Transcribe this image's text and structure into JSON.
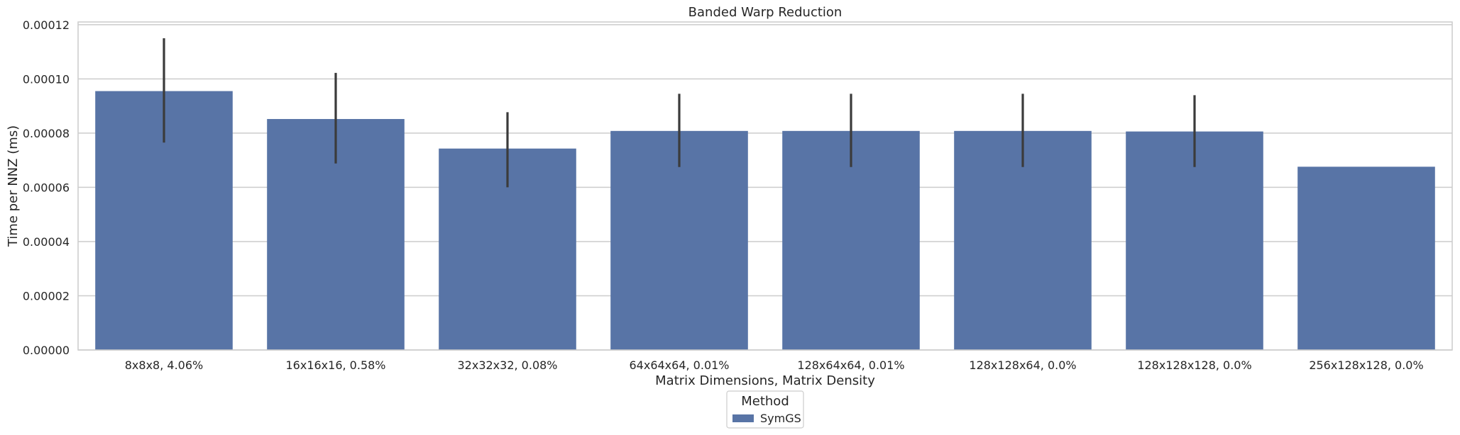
{
  "chart_data": {
    "type": "bar",
    "title": "Banded Warp Reduction",
    "xlabel": "Matrix Dimensions, Matrix Density",
    "ylabel": "Time per NNZ (ms)",
    "categories": [
      "8x8x8, 4.06%",
      "16x16x16, 0.58%",
      "32x32x32, 0.08%",
      "64x64x64, 0.01%",
      "128x64x64, 0.01%",
      "128x128x64, 0.0%",
      "128x128x128, 0.0%",
      "256x128x128, 0.0%"
    ],
    "series": [
      {
        "name": "SymGS",
        "color": "#5874a6",
        "values": [
          9.55e-05,
          8.52e-05,
          7.43e-05,
          8.08e-05,
          8.08e-05,
          8.08e-05,
          8.06e-05,
          6.76e-05
        ],
        "error_low": [
          7.65e-05,
          6.88e-05,
          6e-05,
          6.75e-05,
          6.75e-05,
          6.75e-05,
          6.75e-05,
          null
        ],
        "error_high": [
          0.000115,
          0.0001022,
          8.77e-05,
          9.45e-05,
          9.45e-05,
          9.45e-05,
          9.4e-05,
          null
        ]
      }
    ],
    "yticks": [
      "0.00000",
      "0.00002",
      "0.00004",
      "0.00006",
      "0.00008",
      "0.00010",
      "0.00012"
    ],
    "ytick_values": [
      0,
      2e-05,
      4e-05,
      6e-05,
      8e-05,
      0.0001,
      0.00012
    ],
    "ylim": [
      0,
      0.000121
    ],
    "grid": true,
    "legend": {
      "title": "Method",
      "position": "bottom-center"
    }
  }
}
